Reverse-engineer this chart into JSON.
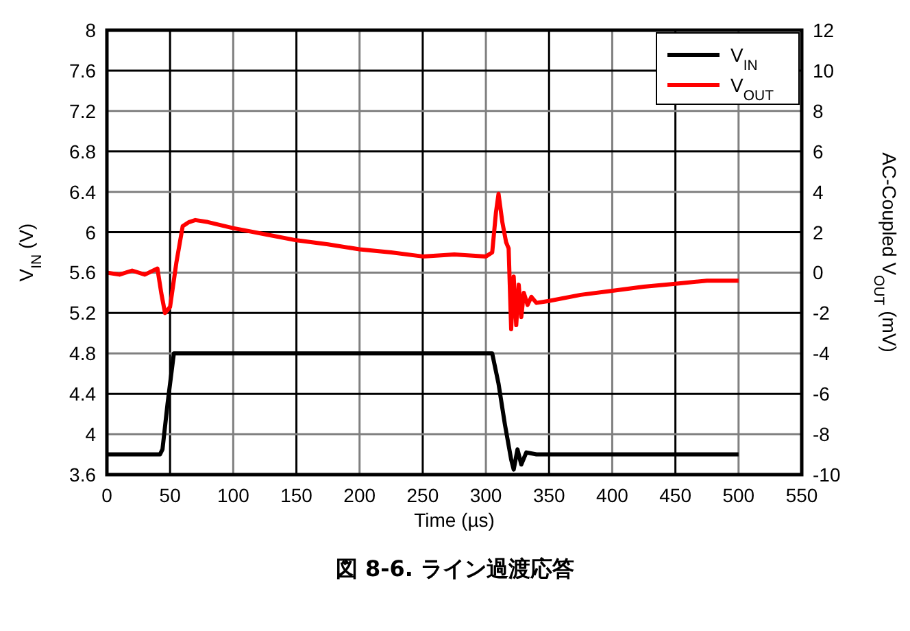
{
  "chart_data": {
    "type": "line",
    "title": "図 8-6. ライン過渡応答",
    "xlabel": "Time (µs)",
    "ylabel": "V$_{IN}$ (V)",
    "y2label": "AC-Coupled V$_{OUT}$ (mV)",
    "xlim": [
      0,
      550
    ],
    "xticks": [
      0,
      50,
      100,
      150,
      200,
      250,
      300,
      350,
      400,
      450,
      500,
      550
    ],
    "ylim": [
      3.6,
      8
    ],
    "yticks": [
      3.6,
      4,
      4.4,
      4.8,
      5.2,
      5.6,
      6,
      6.4,
      6.8,
      7.2,
      7.6,
      8
    ],
    "y2lim": [
      -10,
      12
    ],
    "y2ticks": [
      -10,
      -8,
      -6,
      -4,
      -2,
      0,
      2,
      4,
      6,
      8,
      10,
      12
    ],
    "grid": true,
    "legend": "top right",
    "series": [
      {
        "name": "V$_{IN}$",
        "color": "#000000",
        "x": [
          0,
          20,
          42,
          44,
          48,
          53,
          55,
          100,
          150,
          200,
          250,
          300,
          305,
          310,
          315,
          320,
          322,
          325,
          328,
          332,
          340,
          400,
          450,
          500
        ],
        "values": [
          3.8,
          3.8,
          3.8,
          3.85,
          4.3,
          4.8,
          4.8,
          4.8,
          4.8,
          4.8,
          4.8,
          4.8,
          4.8,
          4.5,
          4.1,
          3.75,
          3.65,
          3.85,
          3.7,
          3.82,
          3.8,
          3.8,
          3.8,
          3.8
        ]
      },
      {
        "name": "V$_{OUT}$",
        "color": "#ff0000",
        "axis": "y2",
        "x": [
          0,
          10,
          20,
          30,
          40,
          43,
          46,
          50,
          55,
          60,
          65,
          70,
          80,
          100,
          125,
          150,
          175,
          200,
          225,
          250,
          275,
          300,
          305,
          308,
          310,
          313,
          316,
          318,
          320,
          322,
          324,
          326,
          328,
          330,
          333,
          336,
          340,
          350,
          375,
          400,
          425,
          450,
          475,
          500
        ],
        "values": [
          0,
          -0.1,
          0.1,
          -0.1,
          0.2,
          -1,
          -2,
          -1.7,
          0.5,
          2.3,
          2.5,
          2.6,
          2.5,
          2.2,
          1.9,
          1.6,
          1.4,
          1.15,
          1,
          0.8,
          0.9,
          0.8,
          1,
          3,
          3.9,
          2.5,
          1.5,
          1.2,
          -2.8,
          -0.2,
          -2.6,
          -0.6,
          -2.2,
          -1,
          -1.6,
          -1.2,
          -1.5,
          -1.4,
          -1.1,
          -0.9,
          -0.7,
          -0.55,
          -0.4,
          -0.4
        ]
      }
    ]
  }
}
